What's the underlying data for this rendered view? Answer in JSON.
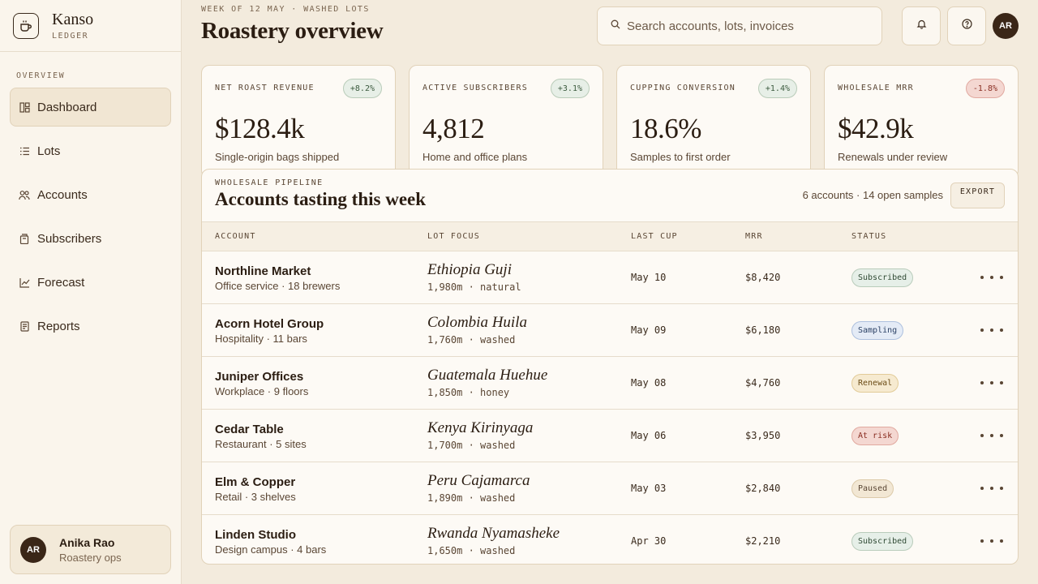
{
  "brand": {
    "name": "Kanso",
    "sub": "LEDGER"
  },
  "nav": {
    "section": "OVERVIEW",
    "items": [
      {
        "label": "Dashboard",
        "icon": "dashboard-icon",
        "active": true
      },
      {
        "label": "Lots",
        "icon": "list-icon"
      },
      {
        "label": "Accounts",
        "icon": "users-icon"
      },
      {
        "label": "Subscribers",
        "icon": "bag-icon"
      },
      {
        "label": "Forecast",
        "icon": "chart-line-icon"
      },
      {
        "label": "Reports",
        "icon": "document-icon"
      }
    ]
  },
  "user": {
    "initials": "AR",
    "name": "Anika Rao",
    "role": "Roastery ops"
  },
  "header": {
    "eyebrow": "WEEK OF 12 MAY · WASHED LOTS",
    "title": "Roastery overview",
    "search_placeholder": "Search accounts, lots, invoices",
    "avatar": "AR"
  },
  "kpis": [
    {
      "label": "NET ROAST REVENUE",
      "badge": "+8.2%",
      "trend": "up",
      "value": "$128.4k",
      "sub": "Single-origin bags shipped"
    },
    {
      "label": "ACTIVE SUBSCRIBERS",
      "badge": "+3.1%",
      "trend": "up",
      "value": "4,812",
      "sub": "Home and office plans"
    },
    {
      "label": "CUPPING CONVERSION",
      "badge": "+1.4%",
      "trend": "up",
      "value": "18.6%",
      "sub": "Samples to first order"
    },
    {
      "label": "WHOLESALE MRR",
      "badge": "-1.8%",
      "trend": "down",
      "value": "$42.9k",
      "sub": "Renewals under review"
    }
  ],
  "pipeline": {
    "eyebrow": "WHOLESALE PIPELINE",
    "title": "Accounts tasting this week",
    "meta": "6 accounts · 14 open samples",
    "export_label": "EXPORT",
    "columns": [
      "ACCOUNT",
      "LOT FOCUS",
      "LAST CUP",
      "MRR",
      "STATUS"
    ],
    "rows": [
      {
        "account": "Northline Market",
        "account_sub": "Office service · 18 brewers",
        "lot": "Ethiopia Guji",
        "lot_sub": "1,980m · natural",
        "last_cup": "May 10",
        "mrr": "$8,420",
        "status": "Subscribed",
        "status_kind": "st-sub"
      },
      {
        "account": "Acorn Hotel Group",
        "account_sub": "Hospitality · 11 bars",
        "lot": "Colombia Huila",
        "lot_sub": "1,760m · washed",
        "last_cup": "May 09",
        "mrr": "$6,180",
        "status": "Sampling",
        "status_kind": "st-samp"
      },
      {
        "account": "Juniper Offices",
        "account_sub": "Workplace · 9 floors",
        "lot": "Guatemala Huehue",
        "lot_sub": "1,850m · honey",
        "last_cup": "May 08",
        "mrr": "$4,760",
        "status": "Renewal",
        "status_kind": "st-ren"
      },
      {
        "account": "Cedar Table",
        "account_sub": "Restaurant · 5 sites",
        "lot": "Kenya Kirinyaga",
        "lot_sub": "1,700m · washed",
        "last_cup": "May 06",
        "mrr": "$3,950",
        "status": "At risk",
        "status_kind": "st-risk"
      },
      {
        "account": "Elm & Copper",
        "account_sub": "Retail · 3 shelves",
        "lot": "Peru Cajamarca",
        "lot_sub": "1,890m · washed",
        "last_cup": "May 03",
        "mrr": "$2,840",
        "status": "Paused",
        "status_kind": "st-pause"
      },
      {
        "account": "Linden Studio",
        "account_sub": "Design campus · 4 bars",
        "lot": "Rwanda Nyamasheke",
        "lot_sub": "1,650m · washed",
        "last_cup": "Apr 30",
        "mrr": "$2,210",
        "status": "Subscribed",
        "status_kind": "st-sub"
      }
    ]
  }
}
